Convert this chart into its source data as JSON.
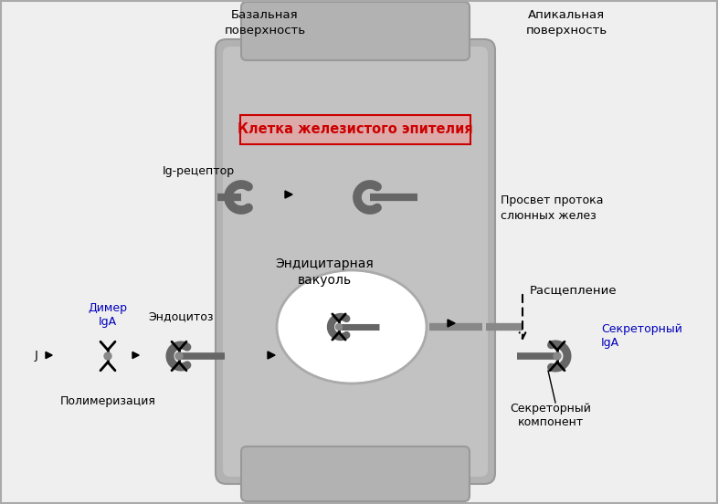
{
  "bg_color": "#efefef",
  "cell_dark": "#aaaaaa",
  "cell_mid": "#bbbbbb",
  "cell_light": "#cccccc",
  "vacuole_color": "#ffffff",
  "receptor_color": "#666666",
  "text_color": "#000000",
  "red_text": "#cc0000",
  "blue_text": "#0000bb",
  "label_cell": "Клетка железистого эпителия",
  "label_basal": "Базальная\nповерхность",
  "label_apical": "Апикальная\nповерхность",
  "label_lumen": "Просвет протока\nслюнных желез",
  "label_receptor": "Ig-рецептор",
  "label_dimer": "Димер\nIgA",
  "label_endocytosis": "Эндоцитоз",
  "label_vacuole": "Эндицитарная\nвакуоль",
  "label_polymerization": "Полимеризация",
  "label_cleavage": "Расщепление",
  "label_secretory_iga": "Секреторный\nIgA",
  "label_secretory_component": "Секреторный\nкомпонент",
  "j_label": "J"
}
